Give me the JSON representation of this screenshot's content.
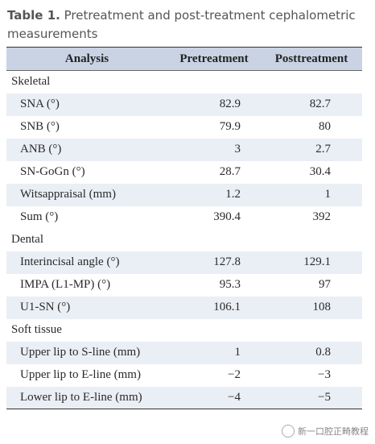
{
  "caption": {
    "label": "Table 1.",
    "text": "Pretreatment and post-treatment cephalometric measurements"
  },
  "headers": [
    "Analysis",
    "Pretreatment",
    "Posttreatment"
  ],
  "rows": [
    {
      "type": "section",
      "name": "Skeletal",
      "pre": "",
      "post": ""
    },
    {
      "type": "item",
      "name": "SNA (°)",
      "pre": "82.9",
      "post": "82.7"
    },
    {
      "type": "item",
      "name": "SNB (°)",
      "pre": "79.9",
      "post": "80"
    },
    {
      "type": "item",
      "name": "ANB (°)",
      "pre": "3",
      "post": "2.7"
    },
    {
      "type": "item",
      "name": "SN-GoGn (°)",
      "pre": "28.7",
      "post": "30.4"
    },
    {
      "type": "item",
      "name": "Witsappraisal (mm)",
      "pre": "1.2",
      "post": "1"
    },
    {
      "type": "item",
      "name": "Sum (°)",
      "pre": "390.4",
      "post": "392"
    },
    {
      "type": "section",
      "name": "Dental",
      "pre": "",
      "post": ""
    },
    {
      "type": "item",
      "name": "Interincisal angle (°)",
      "pre": "127.8",
      "post": "129.1"
    },
    {
      "type": "item",
      "name": "IMPA (L1-MP) (°)",
      "pre": "95.3",
      "post": "97"
    },
    {
      "type": "item",
      "name": "U1-SN (°)",
      "pre": "106.1",
      "post": "108"
    },
    {
      "type": "section",
      "name": "Soft tissue",
      "pre": "",
      "post": ""
    },
    {
      "type": "item",
      "name": "Upper lip to S-line (mm)",
      "pre": "1",
      "post": "0.8"
    },
    {
      "type": "item",
      "name": "Upper lip to E-line (mm)",
      "pre": "−2",
      "post": "−3"
    },
    {
      "type": "item",
      "name": "Lower lip to E-line (mm)",
      "pre": "−4",
      "post": "−5"
    }
  ],
  "watermark": {
    "icon": "wechat-logo-icon",
    "text": "新一口腔正畸教程"
  },
  "colors": {
    "header_bg": "#c9d3e3",
    "stripe_bg": "#eaeef5",
    "caption": "#555555"
  }
}
